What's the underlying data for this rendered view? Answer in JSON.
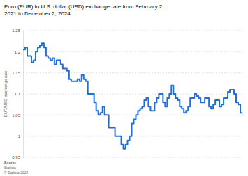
{
  "chart_data": {
    "type": "line",
    "title": "Euro (EUR) to U.S. dollar (USD) exchange rate from February 2, 2021 to December 2, 2024",
    "y_label": "EUR/USD exchange rate",
    "annotations": [
      "Source",
      "Statista",
      "© Statista 2024"
    ],
    "categories": [
      null,
      null,
      null,
      null,
      null,
      null,
      null,
      null,
      null,
      null,
      null,
      null,
      null,
      null,
      null,
      null,
      null,
      null,
      null,
      null,
      null,
      null,
      null,
      null,
      null,
      null,
      null,
      null,
      null,
      null,
      null,
      null,
      null,
      null,
      null,
      null,
      null,
      null,
      null,
      null,
      null,
      null,
      null,
      null,
      null,
      null,
      null,
      null,
      null,
      null,
      null,
      null,
      null,
      null,
      null,
      null,
      null,
      null,
      null,
      null,
      null,
      null,
      null,
      null,
      null,
      null,
      null,
      null,
      null,
      null,
      null,
      null,
      null,
      null,
      null,
      null,
      null,
      null,
      null,
      null,
      null,
      null,
      null,
      null,
      null,
      null,
      null,
      null,
      null,
      null,
      null,
      null,
      null,
      null,
      null,
      null,
      null,
      null,
      null,
      null,
      null,
      null,
      null,
      null,
      null,
      null
    ],
    "values": [
      1.205,
      1.21,
      1.19,
      1.19,
      1.175,
      1.18,
      1.2,
      1.21,
      1.215,
      1.22,
      1.21,
      1.19,
      1.185,
      1.18,
      1.185,
      1.17,
      1.18,
      1.18,
      1.17,
      1.16,
      1.16,
      1.155,
      1.135,
      1.13,
      1.13,
      1.13,
      1.135,
      1.13,
      1.145,
      1.135,
      1.13,
      1.1,
      1.1,
      1.1,
      1.08,
      1.06,
      1.05,
      1.055,
      1.07,
      1.05,
      1.05,
      1.02,
      1.02,
      1.02,
      1,
      1,
      1,
      0.98,
      0.97,
      0.98,
      0.99,
      1,
      1.03,
      1.04,
      1.05,
      1.06,
      1.065,
      1.07,
      1.085,
      1.09,
      1.07,
      1.06,
      1.06,
      1.08,
      1.09,
      1.1,
      1.1,
      1.08,
      1.07,
      1.09,
      1.1,
      1.12,
      1.1,
      1.09,
      1.085,
      1.07,
      1.065,
      1.055,
      1.06,
      1.07,
      1.09,
      1.09,
      1.1,
      1.095,
      1.09,
      1.08,
      1.08,
      1.09,
      1.09,
      1.07,
      1.065,
      1.075,
      1.085,
      1.085,
      1.07,
      1.075,
      1.09,
      1.09,
      1.105,
      1.11,
      1.11,
      1.1,
      1.08,
      1.075,
      1.055,
      1.05
    ],
    "color": "#1f6fd6",
    "ylim": [
      0.95,
      1.25
    ],
    "yticks": [
      0.95,
      1,
      1.05,
      1.1,
      1.15,
      1.2,
      1.25
    ],
    "grid": true,
    "tick_labels": "y"
  }
}
